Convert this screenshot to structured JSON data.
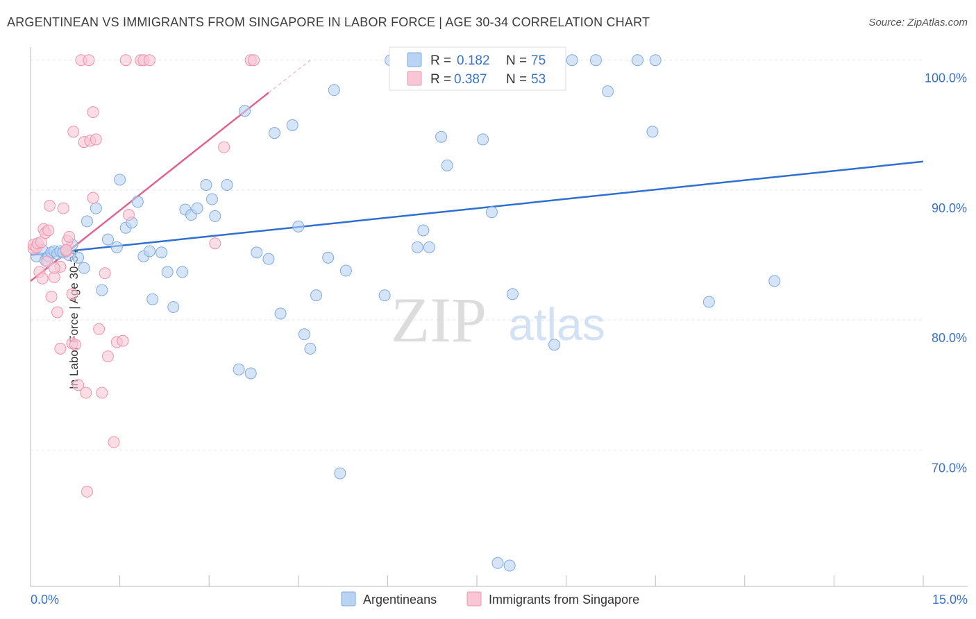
{
  "header": {
    "title": "ARGENTINEAN VS IMMIGRANTS FROM SINGAPORE IN LABOR FORCE | AGE 30-34 CORRELATION CHART",
    "source": "Source: ZipAtlas.com"
  },
  "watermark": {
    "zip": "ZIP",
    "atlas": "atlas"
  },
  "colors": {
    "blue_fill": "#b9d3f2",
    "blue_stroke": "#7eaae0",
    "blue_line": "#2f6fcf",
    "pink_fill": "#f8c6d4",
    "pink_stroke": "#ee93ae",
    "pink_line": "#e2648e",
    "value_text": "#3b73c6",
    "grid": "#e6e6e6",
    "axis": "#bbbbbb"
  },
  "chart_data": {
    "type": "scatter",
    "title": "ARGENTINEAN VS IMMIGRANTS FROM SINGAPORE IN LABOR FORCE | AGE 30-34 CORRELATION CHART",
    "xlabel": "",
    "ylabel": "In Labor Force | Age 30-34",
    "xlim": [
      0,
      15
    ],
    "ylim": [
      59.5,
      101.0
    ],
    "x_tick_labels": [
      "0.0%",
      "15.0%"
    ],
    "y_ticks": [
      70,
      80,
      90,
      100
    ],
    "y_tick_labels": [
      "70.0%",
      "80.0%",
      "90.0%",
      "100.0%"
    ],
    "legend_position": "top-center",
    "stats": [
      {
        "r_label": "R =",
        "r_value": "0.182",
        "n_label": "N =",
        "n_value": "75"
      },
      {
        "r_label": "R =",
        "r_value": "0.387",
        "n_label": "N =",
        "n_value": "53"
      }
    ],
    "series": [
      {
        "name": "Argentineans",
        "color": "blue",
        "trend": {
          "x": [
            0.0,
            15.0
          ],
          "y": [
            85.0,
            92.2
          ]
        },
        "points": [
          [
            0.1,
            84.9
          ],
          [
            0.2,
            85.4
          ],
          [
            0.25,
            84.6
          ],
          [
            0.3,
            84.9
          ],
          [
            0.35,
            85.2
          ],
          [
            0.4,
            85.3
          ],
          [
            0.45,
            85.1
          ],
          [
            0.5,
            85.3
          ],
          [
            0.55,
            85.2
          ],
          [
            0.65,
            85.0
          ],
          [
            0.7,
            85.8
          ],
          [
            0.8,
            84.8
          ],
          [
            0.9,
            84.0
          ],
          [
            0.95,
            87.6
          ],
          [
            1.1,
            88.6
          ],
          [
            1.2,
            82.3
          ],
          [
            1.3,
            86.2
          ],
          [
            1.45,
            85.6
          ],
          [
            1.5,
            90.8
          ],
          [
            1.6,
            87.1
          ],
          [
            1.7,
            87.5
          ],
          [
            1.8,
            89.1
          ],
          [
            1.9,
            84.9
          ],
          [
            2.0,
            85.3
          ],
          [
            2.05,
            81.6
          ],
          [
            2.2,
            85.2
          ],
          [
            2.3,
            83.7
          ],
          [
            2.4,
            81.0
          ],
          [
            2.55,
            83.7
          ],
          [
            2.6,
            88.5
          ],
          [
            2.7,
            88.1
          ],
          [
            2.8,
            88.6
          ],
          [
            2.95,
            90.4
          ],
          [
            3.05,
            89.3
          ],
          [
            3.1,
            88.0
          ],
          [
            3.3,
            90.4
          ],
          [
            3.5,
            76.2
          ],
          [
            3.6,
            96.1
          ],
          [
            3.7,
            75.9
          ],
          [
            3.8,
            85.2
          ],
          [
            4.0,
            84.7
          ],
          [
            4.1,
            94.4
          ],
          [
            4.2,
            80.5
          ],
          [
            4.4,
            95.0
          ],
          [
            4.5,
            87.2
          ],
          [
            4.6,
            78.9
          ],
          [
            4.7,
            77.8
          ],
          [
            4.8,
            81.9
          ],
          [
            5.0,
            84.8
          ],
          [
            5.1,
            97.7
          ],
          [
            5.2,
            68.2
          ],
          [
            5.3,
            83.8
          ],
          [
            5.95,
            81.9
          ],
          [
            6.05,
            100.0
          ],
          [
            6.5,
            85.6
          ],
          [
            6.6,
            86.9
          ],
          [
            6.7,
            85.6
          ],
          [
            6.9,
            94.1
          ],
          [
            7.0,
            91.9
          ],
          [
            7.0,
            100.0
          ],
          [
            7.6,
            93.9
          ],
          [
            7.75,
            88.3
          ],
          [
            8.1,
            82.0
          ],
          [
            7.85,
            61.3
          ],
          [
            8.05,
            61.1
          ],
          [
            8.5,
            100.0
          ],
          [
            8.8,
            78.1
          ],
          [
            9.1,
            100.0
          ],
          [
            9.5,
            100.0
          ],
          [
            9.7,
            97.6
          ],
          [
            10.2,
            100.0
          ],
          [
            10.45,
            94.5
          ],
          [
            10.5,
            100.0
          ],
          [
            11.4,
            81.4
          ],
          [
            12.5,
            83.0
          ]
        ]
      },
      {
        "name": "Immigrants from Singapore",
        "color": "pink",
        "trend": {
          "x": [
            0.0,
            4.0
          ],
          "y": [
            83.0,
            97.5
          ]
        },
        "trend_dashed": {
          "x": [
            4.0,
            4.7
          ],
          "y": [
            97.5,
            100.0
          ]
        },
        "points": [
          [
            0.05,
            85.5
          ],
          [
            0.05,
            85.8
          ],
          [
            0.1,
            85.6
          ],
          [
            0.12,
            85.9
          ],
          [
            0.15,
            83.7
          ],
          [
            0.18,
            86.0
          ],
          [
            0.2,
            83.2
          ],
          [
            0.22,
            87.0
          ],
          [
            0.25,
            86.7
          ],
          [
            0.28,
            84.5
          ],
          [
            0.3,
            86.9
          ],
          [
            0.32,
            88.8
          ],
          [
            0.35,
            81.8
          ],
          [
            0.4,
            83.3
          ],
          [
            0.45,
            80.6
          ],
          [
            0.5,
            77.8
          ],
          [
            0.5,
            84.1
          ],
          [
            0.55,
            88.6
          ],
          [
            0.6,
            85.3
          ],
          [
            0.62,
            86.1
          ],
          [
            0.65,
            86.4
          ],
          [
            0.7,
            78.2
          ],
          [
            0.7,
            82.0
          ],
          [
            0.72,
            94.5
          ],
          [
            0.75,
            78.1
          ],
          [
            0.8,
            75.0
          ],
          [
            0.85,
            100.0
          ],
          [
            0.9,
            93.7
          ],
          [
            0.93,
            74.4
          ],
          [
            0.95,
            66.8
          ],
          [
            0.98,
            100.0
          ],
          [
            1.0,
            93.8
          ],
          [
            1.05,
            96.0
          ],
          [
            1.05,
            89.4
          ],
          [
            1.1,
            93.9
          ],
          [
            1.15,
            79.3
          ],
          [
            1.2,
            74.4
          ],
          [
            1.25,
            83.6
          ],
          [
            1.3,
            77.2
          ],
          [
            1.4,
            70.6
          ],
          [
            1.45,
            78.3
          ],
          [
            1.55,
            78.4
          ],
          [
            1.6,
            100.0
          ],
          [
            1.65,
            88.1
          ],
          [
            1.85,
            100.0
          ],
          [
            1.9,
            100.0
          ],
          [
            2.0,
            100.0
          ],
          [
            3.1,
            85.9
          ],
          [
            3.25,
            93.3
          ],
          [
            3.7,
            100.0
          ],
          [
            3.75,
            100.0
          ],
          [
            0.4,
            84.0
          ],
          [
            0.6,
            85.4
          ]
        ]
      }
    ]
  }
}
